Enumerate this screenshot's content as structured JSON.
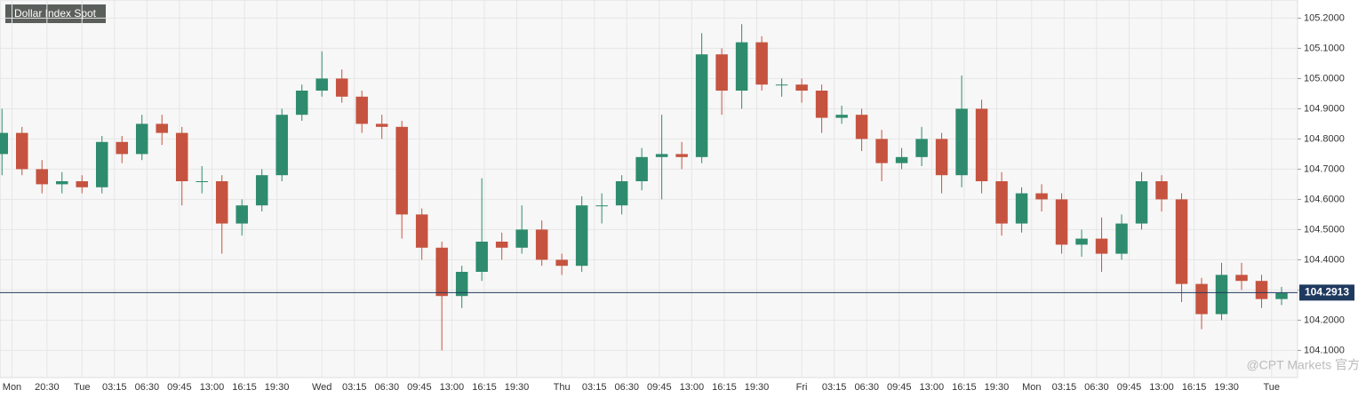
{
  "chart_data": {
    "type": "candlestick",
    "title": "Dollar Index Spot",
    "x": [
      0,
      2,
      4,
      6,
      8,
      10,
      12,
      14,
      16,
      18,
      20,
      22,
      24,
      26,
      28,
      30,
      32,
      34,
      36,
      38,
      40,
      42,
      44,
      46,
      48,
      50,
      52,
      54,
      56,
      58,
      60,
      62,
      64,
      66,
      68,
      70,
      72,
      74,
      76,
      78,
      80,
      82,
      84,
      86,
      88,
      90,
      92,
      94,
      96,
      98,
      100,
      102,
      104,
      106,
      108,
      110,
      112,
      114,
      116,
      118,
      120,
      122,
      124,
      126,
      128
    ],
    "open": [
      104.75,
      104.82,
      104.7,
      104.65,
      104.66,
      104.64,
      104.79,
      104.75,
      104.85,
      104.82,
      104.66,
      104.66,
      104.52,
      104.58,
      104.68,
      104.88,
      104.96,
      105.0,
      104.94,
      104.85,
      104.84,
      104.55,
      104.44,
      104.28,
      104.36,
      104.46,
      104.44,
      104.5,
      104.4,
      104.38,
      104.58,
      104.58,
      104.66,
      104.74,
      104.75,
      104.74,
      105.08,
      104.96,
      105.12,
      104.98,
      104.98,
      104.96,
      104.87,
      104.88,
      104.8,
      104.72,
      104.74,
      104.8,
      104.68,
      104.9,
      104.66,
      104.52,
      104.62,
      104.6,
      104.45,
      104.47,
      104.42,
      104.52,
      104.66,
      104.6,
      104.32,
      104.22,
      104.35,
      104.33,
      104.27
    ],
    "high": [
      104.9,
      104.84,
      104.73,
      104.69,
      104.68,
      104.81,
      104.81,
      104.88,
      104.88,
      104.84,
      104.71,
      104.68,
      104.6,
      104.7,
      104.9,
      104.98,
      105.09,
      105.03,
      104.96,
      104.88,
      104.86,
      104.57,
      104.46,
      104.38,
      104.67,
      104.49,
      104.58,
      104.53,
      104.42,
      104.61,
      104.62,
      104.68,
      104.77,
      104.88,
      104.79,
      105.15,
      105.1,
      105.18,
      105.14,
      105.0,
      105.0,
      104.98,
      104.91,
      104.9,
      104.83,
      104.77,
      104.84,
      104.82,
      105.01,
      104.93,
      104.69,
      104.64,
      104.65,
      104.62,
      104.5,
      104.54,
      104.55,
      104.69,
      104.68,
      104.62,
      104.34,
      104.39,
      104.39,
      104.35,
      104.31
    ],
    "low": [
      104.68,
      104.68,
      104.62,
      104.62,
      104.62,
      104.62,
      104.72,
      104.73,
      104.78,
      104.58,
      104.62,
      104.42,
      104.48,
      104.56,
      104.66,
      104.86,
      104.94,
      104.92,
      104.82,
      104.8,
      104.47,
      104.4,
      104.1,
      104.24,
      104.33,
      104.4,
      104.42,
      104.38,
      104.35,
      104.36,
      104.52,
      104.55,
      104.63,
      104.6,
      104.7,
      104.72,
      104.88,
      104.9,
      104.96,
      104.94,
      104.92,
      104.82,
      104.85,
      104.76,
      104.66,
      104.7,
      104.71,
      104.62,
      104.64,
      104.62,
      104.48,
      104.49,
      104.56,
      104.42,
      104.41,
      104.36,
      104.4,
      104.5,
      104.56,
      104.26,
      104.17,
      104.2,
      104.3,
      104.24,
      104.25
    ],
    "close": [
      104.82,
      104.7,
      104.65,
      104.66,
      104.64,
      104.79,
      104.75,
      104.85,
      104.82,
      104.66,
      104.66,
      104.52,
      104.58,
      104.68,
      104.88,
      104.96,
      105.0,
      104.94,
      104.85,
      104.84,
      104.55,
      104.44,
      104.28,
      104.36,
      104.46,
      104.44,
      104.5,
      104.4,
      104.38,
      104.58,
      104.58,
      104.66,
      104.74,
      104.75,
      104.74,
      105.08,
      104.96,
      105.12,
      104.98,
      104.98,
      104.96,
      104.87,
      104.88,
      104.8,
      104.72,
      104.74,
      104.8,
      104.68,
      104.9,
      104.66,
      104.52,
      104.62,
      104.6,
      104.45,
      104.47,
      104.42,
      104.52,
      104.66,
      104.6,
      104.32,
      104.22,
      104.35,
      104.33,
      104.27,
      104.29
    ],
    "up_color": "#2e8b6e",
    "down_color": "#c5533f",
    "xlim": [
      -0.2,
      129.6
    ],
    "xticks": [
      {
        "value": 1,
        "label": "Mon"
      },
      {
        "value": 4.5,
        "label": "20:30"
      },
      {
        "value": 8,
        "label": "Tue"
      },
      {
        "value": 11.25,
        "label": "03:15"
      },
      {
        "value": 14.5,
        "label": "06:30"
      },
      {
        "value": 17.75,
        "label": "09:45"
      },
      {
        "value": 21,
        "label": "13:00"
      },
      {
        "value": 24.25,
        "label": "16:15"
      },
      {
        "value": 27.5,
        "label": "19:30"
      },
      {
        "value": 32,
        "label": "Wed"
      },
      {
        "value": 35.25,
        "label": "03:15"
      },
      {
        "value": 38.5,
        "label": "06:30"
      },
      {
        "value": 41.75,
        "label": "09:45"
      },
      {
        "value": 45,
        "label": "13:00"
      },
      {
        "value": 48.25,
        "label": "16:15"
      },
      {
        "value": 51.5,
        "label": "19:30"
      },
      {
        "value": 56,
        "label": "Thu"
      },
      {
        "value": 59.25,
        "label": "03:15"
      },
      {
        "value": 62.5,
        "label": "06:30"
      },
      {
        "value": 65.75,
        "label": "09:45"
      },
      {
        "value": 69,
        "label": "13:00"
      },
      {
        "value": 72.25,
        "label": "16:15"
      },
      {
        "value": 75.5,
        "label": "19:30"
      },
      {
        "value": 80,
        "label": "Fri"
      },
      {
        "value": 83.25,
        "label": "03:15"
      },
      {
        "value": 86.5,
        "label": "06:30"
      },
      {
        "value": 89.75,
        "label": "09:45"
      },
      {
        "value": 93,
        "label": "13:00"
      },
      {
        "value": 96.25,
        "label": "16:15"
      },
      {
        "value": 99.5,
        "label": "19:30"
      },
      {
        "value": 103,
        "label": "Mon"
      },
      {
        "value": 106.25,
        "label": "03:15"
      },
      {
        "value": 109.5,
        "label": "06:30"
      },
      {
        "value": 112.75,
        "label": "09:45"
      },
      {
        "value": 116,
        "label": "13:00"
      },
      {
        "value": 119.25,
        "label": "16:15"
      },
      {
        "value": 122.5,
        "label": "19:30"
      },
      {
        "value": 127,
        "label": "Tue"
      }
    ],
    "ylim": [
      104.01,
      105.26
    ],
    "yticks": [
      {
        "value": 104.1,
        "label": "104.1000"
      },
      {
        "value": 104.2,
        "label": "104.2000"
      },
      {
        "value": 104.3,
        "label": "104.3000"
      },
      {
        "value": 104.4,
        "label": "104.4000"
      },
      {
        "value": 104.5,
        "label": "104.5000"
      },
      {
        "value": 104.6,
        "label": "104.6000"
      },
      {
        "value": 104.7,
        "label": "104.7000"
      },
      {
        "value": 104.8,
        "label": "104.8000"
      },
      {
        "value": 104.9,
        "label": "104.9000"
      },
      {
        "value": 105,
        "label": "105.0000"
      },
      {
        "value": 105.1,
        "label": "105.1000"
      },
      {
        "value": 105.2,
        "label": "105.2000"
      }
    ],
    "grid": true,
    "last_price": 104.2913,
    "watermark": "@CPT Markets 官方"
  }
}
